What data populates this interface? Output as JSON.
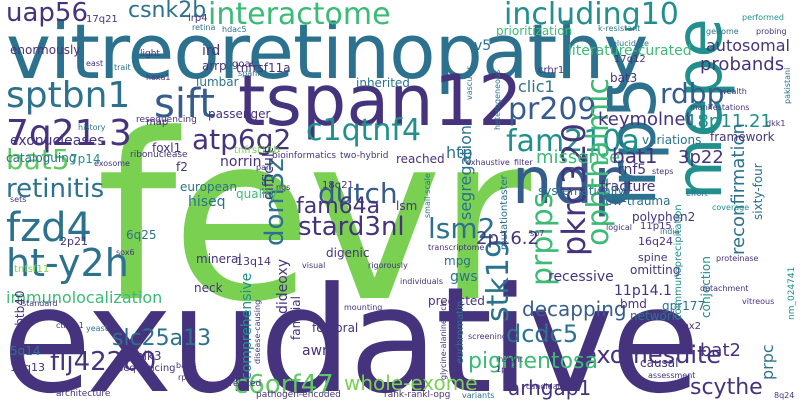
{
  "colors": {
    "background": "#ffffff",
    "dark_purple": "#3e1f5e",
    "purple": "#46337e",
    "indigo": "#365c8d",
    "blue": "#2c728e",
    "teal": "#21908d",
    "green": "#3bbb75",
    "light_green": "#5ec962",
    "lime": "#7ad151"
  },
  "words": [
    {
      "text": "fevr",
      "color": "#7ad151"
    },
    {
      "text": "exudative",
      "color": "#46337e"
    },
    {
      "text": "vitreoretinopathy",
      "color": "#2c728e"
    },
    {
      "text": "tspan12",
      "color": "#46337e"
    },
    {
      "text": "ndp",
      "color": "#365c8d"
    },
    {
      "text": "lrp5",
      "color": "#2c728e"
    },
    {
      "text": "mepe",
      "color": "#21908d"
    },
    {
      "text": "interactome",
      "color": "#3bbb75"
    },
    {
      "text": "including10",
      "color": "#21908d"
    },
    {
      "text": "sptbn1",
      "color": "#2c728e"
    },
    {
      "text": "sift",
      "color": "#365c8d"
    },
    {
      "text": "7q21.3",
      "color": "#46337e"
    },
    {
      "text": "fzd4",
      "color": "#2c728e"
    },
    {
      "text": "ht-y2h",
      "color": "#2c728e"
    },
    {
      "text": "c1qtnf4",
      "color": "#21908d"
    },
    {
      "text": "fam210a",
      "color": "#21908d"
    },
    {
      "text": "pr209",
      "color": "#365c8d"
    },
    {
      "text": "pkrd320",
      "color": "#46337e"
    },
    {
      "text": "ophthalmic",
      "color": "#3bbb75"
    },
    {
      "text": "rdbp",
      "color": "#365c8d"
    },
    {
      "text": "atp6g2",
      "color": "#46337e"
    },
    {
      "text": "stard3nl",
      "color": "#46337e"
    },
    {
      "text": "dutch",
      "color": "#365c8d"
    },
    {
      "text": "dom3z",
      "color": "#2c728e"
    },
    {
      "text": "fam64a",
      "color": "#46337e"
    },
    {
      "text": "stk19",
      "color": "#2c728e"
    },
    {
      "text": "prpips",
      "color": "#3bbb75"
    },
    {
      "text": "lsm2",
      "color": "#2c728e"
    },
    {
      "text": "bat5",
      "color": "#5ec962"
    },
    {
      "text": "retinitis",
      "color": "#2c728e"
    },
    {
      "text": "uap56",
      "color": "#46337e"
    },
    {
      "text": "csnk2b",
      "color": "#2c728e"
    },
    {
      "text": "immunolocalization",
      "color": "#3bbb75"
    },
    {
      "text": "flj42280",
      "color": "#46337e"
    },
    {
      "text": "c6orf47",
      "color": "#5ec962"
    },
    {
      "text": "exomesuite",
      "color": "#46337e"
    },
    {
      "text": "pigmentosa",
      "color": "#3bbb75"
    },
    {
      "text": "dcdc5",
      "color": "#2c728e"
    },
    {
      "text": "slc25a13",
      "color": "#2c728e"
    },
    {
      "text": "arhgap1",
      "color": "#46337e"
    },
    {
      "text": "whole-exome",
      "color": "#7ad151"
    },
    {
      "text": "scythe",
      "color": "#46337e"
    },
    {
      "text": "decapping",
      "color": "#365c8d"
    },
    {
      "text": "2p16.2",
      "color": "#46337e"
    },
    {
      "text": "missense",
      "color": "#3bbb75"
    },
    {
      "text": "bat1",
      "color": "#46337e"
    },
    {
      "text": "keymolnet",
      "color": "#46337e"
    },
    {
      "text": "18p11.21",
      "color": "#21908d"
    },
    {
      "text": "3p22",
      "color": "#46337e"
    },
    {
      "text": "reconfirmation",
      "color": "#2c728e"
    },
    {
      "text": "rnf5",
      "color": "#46337e"
    },
    {
      "text": "probands",
      "color": "#46337e"
    },
    {
      "text": "autosomal",
      "color": "#46337e"
    },
    {
      "text": "literature-curated",
      "color": "#3bbb75"
    },
    {
      "text": "clic1",
      "color": "#2c728e"
    },
    {
      "text": "htp",
      "color": "#2c728e"
    },
    {
      "text": "norrin",
      "color": "#46337e"
    },
    {
      "text": "lsm",
      "color": "#46337e"
    },
    {
      "text": "segregation",
      "color": "#2c728e"
    },
    {
      "text": "fracture",
      "color": "#46337e"
    },
    {
      "text": "polyphen2",
      "color": "#46337e"
    },
    {
      "text": "exonucleases",
      "color": "#46337e"
    },
    {
      "text": "cataloguing",
      "color": "#2c728e"
    },
    {
      "text": "7p14",
      "color": "#21908d"
    },
    {
      "text": "hiseq",
      "color": "#2c728e"
    },
    {
      "text": "6q25",
      "color": "#2c728e"
    },
    {
      "text": "european",
      "color": "#2c728e"
    },
    {
      "text": "gws",
      "color": "#2c728e"
    },
    {
      "text": "mpg",
      "color": "#2c728e"
    },
    {
      "text": "recessive",
      "color": "#46337e"
    },
    {
      "text": "11p14.1",
      "color": "#46337e"
    },
    {
      "text": "bmd",
      "color": "#46337e"
    },
    {
      "text": "network",
      "color": "#2c728e"
    },
    {
      "text": "gpr177",
      "color": "#2c728e"
    },
    {
      "text": "omitting",
      "color": "#46337e"
    },
    {
      "text": "spine",
      "color": "#46337e"
    },
    {
      "text": "16q24",
      "color": "#46337e"
    },
    {
      "text": "11p15",
      "color": "#46337e"
    },
    {
      "text": "5q14",
      "color": "#2c728e"
    },
    {
      "text": "zbtb40",
      "color": "#46337e"
    },
    {
      "text": "12q13",
      "color": "#46337e"
    },
    {
      "text": "femoral",
      "color": "#46337e"
    },
    {
      "text": "awry",
      "color": "#46337e"
    },
    {
      "text": "familial",
      "color": "#46337e"
    },
    {
      "text": "dideoxy",
      "color": "#46337e"
    },
    {
      "text": "difficult",
      "color": "#46337e"
    },
    {
      "text": "comprehensive",
      "color": "#21908d"
    },
    {
      "text": "causal",
      "color": "#46337e"
    },
    {
      "text": "bat2",
      "color": "#46337e"
    },
    {
      "text": "prpc",
      "color": "#2c728e"
    },
    {
      "text": "sixty-four",
      "color": "#2c728e"
    },
    {
      "text": "inherited",
      "color": "#2c728e"
    },
    {
      "text": "lumbar",
      "color": "#2c728e"
    },
    {
      "text": "ird",
      "color": "#46337e"
    },
    {
      "text": "arrp",
      "color": "#46337e"
    },
    {
      "text": "goal",
      "color": "#46337e"
    },
    {
      "text": "v5",
      "color": "#2c728e"
    },
    {
      "text": "bat3",
      "color": "#46337e"
    },
    {
      "text": "crhr1",
      "color": "#46337e"
    },
    {
      "text": "17q12",
      "color": "#46337e"
    },
    {
      "text": "17q21",
      "color": "#46337e"
    },
    {
      "text": "lrp4",
      "color": "#46337e"
    },
    {
      "text": "prioritization",
      "color": "#3bbb75"
    },
    {
      "text": "enormously",
      "color": "#46337e"
    },
    {
      "text": "tnfrsf11a",
      "color": "#46337e"
    },
    {
      "text": "tnfrsf11b",
      "color": "#7ad151"
    },
    {
      "text": "passenger",
      "color": "#46337e"
    },
    {
      "text": "foxl1",
      "color": "#46337e"
    },
    {
      "text": "f2",
      "color": "#46337e"
    },
    {
      "text": "quality",
      "color": "#3bbb75"
    },
    {
      "text": "18q21",
      "color": "#46337e"
    },
    {
      "text": "2p21",
      "color": "#46337e"
    },
    {
      "text": "tnfsf11",
      "color": "#7ad151"
    },
    {
      "text": "mineral",
      "color": "#46337e"
    },
    {
      "text": "13q14",
      "color": "#46337e"
    },
    {
      "text": "digenic",
      "color": "#46337e"
    },
    {
      "text": "neck",
      "color": "#46337e"
    },
    {
      "text": "plk3",
      "color": "#46337e"
    },
    {
      "text": "sequencing",
      "color": "#46337e"
    },
    {
      "text": "map",
      "color": "#46337e"
    },
    {
      "text": "predicted",
      "color": "#46337e"
    },
    {
      "text": "reached",
      "color": "#46337e"
    },
    {
      "text": "two-hybrid",
      "color": "#46337e"
    },
    {
      "text": "systematically",
      "color": "#2c728e"
    },
    {
      "text": "low-trauma",
      "color": "#2c728e"
    },
    {
      "text": "variations",
      "color": "#2c728e"
    },
    {
      "text": "framework",
      "color": "#46337e"
    },
    {
      "text": "pbx2",
      "color": "#46337e"
    },
    {
      "text": "coimmunoprecipitation",
      "color": "#21908d"
    },
    {
      "text": "conjection",
      "color": "#21908d"
    },
    {
      "text": "mutationtaster",
      "color": "#2c728e"
    },
    {
      "text": "euchromatin",
      "color": "#2c728e"
    },
    {
      "text": "rank-rankl-opg",
      "color": "#46337e"
    },
    {
      "text": "pathogen-encoded",
      "color": "#46337e"
    },
    {
      "text": "architecture",
      "color": "#46337e"
    },
    {
      "text": "unrelated",
      "color": "#46337e"
    },
    {
      "text": "ctnnb1",
      "color": "#46337e"
    },
    {
      "text": "yeast",
      "color": "#2c728e"
    },
    {
      "text": "ribonuclease",
      "color": "#46337e"
    },
    {
      "text": "bioinformatics",
      "color": "#46337e"
    },
    {
      "text": "resequencing",
      "color": "#46337e"
    },
    {
      "text": "history",
      "color": "#2c728e"
    },
    {
      "text": "exhaustive",
      "color": "#46337e"
    },
    {
      "text": "filter",
      "color": "#46337e"
    },
    {
      "text": "heterogeneous",
      "color": "#2c728e"
    },
    {
      "text": "manifestations",
      "color": "#46337e"
    },
    {
      "text": "wealth",
      "color": "#46337e"
    },
    {
      "text": "pakistani",
      "color": "#2c728e"
    },
    {
      "text": "dkk1",
      "color": "#46337e"
    },
    {
      "text": "vascular",
      "color": "#2c728e"
    },
    {
      "text": "elucidate",
      "color": "#2c728e"
    },
    {
      "text": "genome",
      "color": "#2c728e"
    },
    {
      "text": "performed",
      "color": "#21908d"
    },
    {
      "text": "probing",
      "color": "#46337e"
    },
    {
      "text": "east",
      "color": "#46337e"
    },
    {
      "text": "light",
      "color": "#46337e"
    },
    {
      "text": "spanish",
      "color": "#2c728e"
    },
    {
      "text": "hoxa1",
      "color": "#46337e"
    },
    {
      "text": "hdac5",
      "color": "#2c728e"
    },
    {
      "text": "k-resistant",
      "color": "#2c728e"
    },
    {
      "text": "retina",
      "color": "#2c728e"
    },
    {
      "text": "trait",
      "color": "#2c728e"
    },
    {
      "text": "steps",
      "color": "#46337e"
    },
    {
      "text": "effort",
      "color": "#2c728e"
    },
    {
      "text": "coverage",
      "color": "#21908d"
    },
    {
      "text": "logical",
      "color": "#46337e"
    },
    {
      "text": "india",
      "color": "#2c728e"
    },
    {
      "text": "nm_024741",
      "color": "#21908d"
    },
    {
      "text": "detachment",
      "color": "#46337e"
    },
    {
      "text": "vitreous",
      "color": "#46337e"
    },
    {
      "text": "proteinase",
      "color": "#46337e"
    },
    {
      "text": "agilent",
      "color": "#46337e"
    },
    {
      "text": "assessment",
      "color": "#46337e"
    },
    {
      "text": "candidate",
      "color": "#46337e"
    },
    {
      "text": "insight",
      "color": "#46337e"
    },
    {
      "text": "variants",
      "color": "#2c728e"
    },
    {
      "text": "screening",
      "color": "#46337e"
    },
    {
      "text": "individuals",
      "color": "#46337e"
    },
    {
      "text": "standard",
      "color": "#46337e"
    },
    {
      "text": "visual",
      "color": "#46337e"
    },
    {
      "text": "rigorously",
      "color": "#46337e"
    },
    {
      "text": "ppi",
      "color": "#46337e"
    },
    {
      "text": "sox6",
      "color": "#46337e"
    },
    {
      "text": "exosome",
      "color": "#46337e"
    },
    {
      "text": "par",
      "color": "#46337e"
    },
    {
      "text": "ngs",
      "color": "#46337e"
    },
    {
      "text": "transcriptome",
      "color": "#46337e"
    },
    {
      "text": "small-scale",
      "color": "#2c728e"
    },
    {
      "text": "sp7",
      "color": "#46337e"
    },
    {
      "text": "basis",
      "color": "#46337e"
    },
    {
      "text": "rp",
      "color": "#46337e"
    },
    {
      "text": "disease-causing",
      "color": "#46337e"
    },
    {
      "text": "glycine-alanine-rich",
      "color": "#46337e"
    },
    {
      "text": "mounting",
      "color": "#46337e"
    },
    {
      "text": "1p36",
      "color": "#46337e"
    },
    {
      "text": "8q24",
      "color": "#46337e"
    },
    {
      "text": "sets",
      "color": "#46337e"
    }
  ]
}
